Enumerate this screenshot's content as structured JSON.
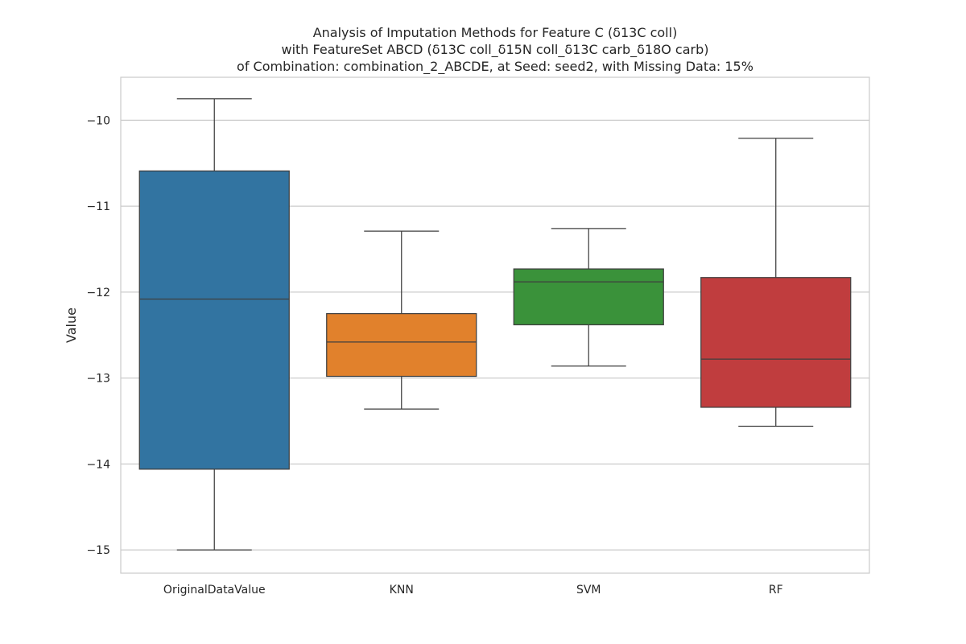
{
  "chart_data": {
    "type": "box",
    "title_lines": [
      "Analysis of Imputation Methods for Feature C (δ13C coll)",
      "with FeatureSet ABCD (δ13C coll_δ15N coll_δ13C carb_δ18O carb)",
      "of Combination: combination_2_ABCDE, at Seed: seed2, with Missing Data: 15%"
    ],
    "xlabel": "",
    "ylabel": "Value",
    "ylim": [
      -15.27,
      -9.5
    ],
    "yticks": [
      -10,
      -11,
      -12,
      -13,
      -14,
      -15
    ],
    "ytick_labels": [
      "−10",
      "−11",
      "−12",
      "−13",
      "−14",
      "−15"
    ],
    "grid": "horizontal",
    "categories": [
      "OriginalDataValue",
      "KNN",
      "SVM",
      "RF"
    ],
    "boxes": [
      {
        "category": "OriginalDataValue",
        "whisker_low": -15.0,
        "q1": -14.06,
        "median": -12.08,
        "q3": -10.59,
        "whisker_high": -9.75,
        "color": "#3274a1"
      },
      {
        "category": "KNN",
        "whisker_low": -13.36,
        "q1": -12.98,
        "median": -12.58,
        "q3": -12.25,
        "whisker_high": -11.29,
        "color": "#e1812c"
      },
      {
        "category": "SVM",
        "whisker_low": -12.86,
        "q1": -12.38,
        "median": -11.88,
        "q3": -11.73,
        "whisker_high": -11.26,
        "color": "#3a923a"
      },
      {
        "category": "RF",
        "whisker_low": -13.56,
        "q1": -13.34,
        "median": -12.78,
        "q3": -11.83,
        "whisker_high": -10.21,
        "color": "#c03d3e"
      }
    ]
  }
}
